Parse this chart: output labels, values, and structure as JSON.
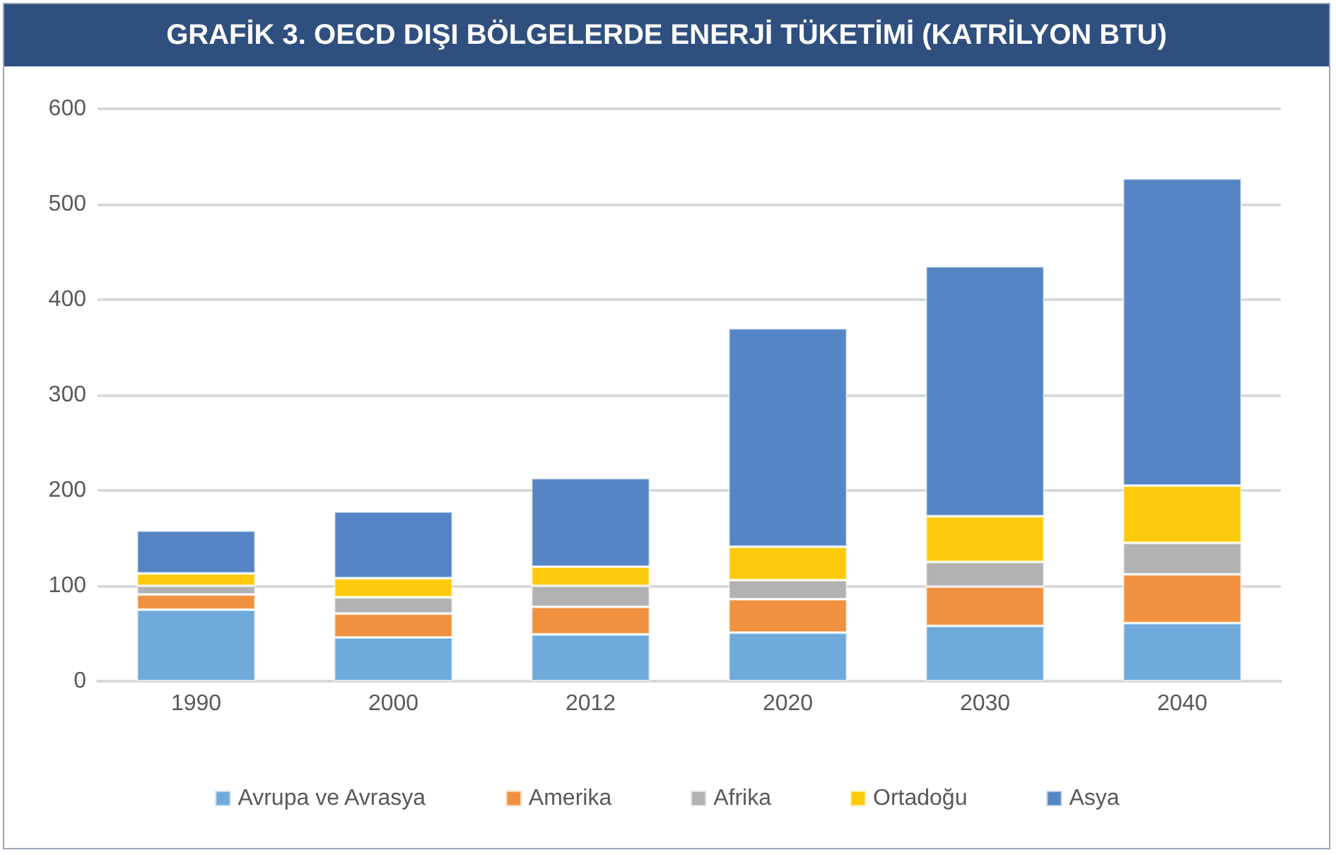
{
  "chart_data": {
    "type": "bar",
    "title": "GRAFİK 3. OECD DIŞI BÖLGELERDE ENERJİ TÜKETİMİ (KATRİLYON BTU)",
    "categories": [
      "1990",
      "2000",
      "2012",
      "2020",
      "2030",
      "2040"
    ],
    "stacked": true,
    "series": [
      {
        "name": "Avrupa ve Avrasya",
        "color": "#6faadb",
        "values": [
          75,
          46,
          49,
          51,
          58,
          61
        ]
      },
      {
        "name": "Amerika",
        "color": "#f0913f",
        "values": [
          16,
          25,
          29,
          35,
          41,
          51
        ]
      },
      {
        "name": "Afrika",
        "color": "#b2b2b2",
        "values": [
          9,
          17,
          22,
          20,
          26,
          33
        ]
      },
      {
        "name": "Ortadoğu",
        "color": "#fdca0c",
        "values": [
          13,
          20,
          20,
          35,
          48,
          60
        ]
      },
      {
        "name": "Asya",
        "color": "#5585c5",
        "values": [
          45,
          70,
          93,
          229,
          262,
          322
        ]
      }
    ],
    "ylim": [
      0,
      600
    ],
    "yticks": [
      0,
      100,
      200,
      300,
      400,
      500,
      600
    ],
    "grid": "y",
    "legend": "bottom"
  }
}
